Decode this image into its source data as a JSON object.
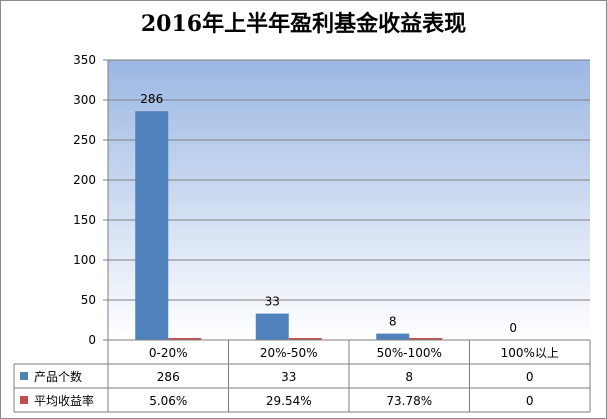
{
  "chart_data": {
    "type": "bar",
    "title": "2016年上半年盈利基金收益表现",
    "categories": [
      "0-20%",
      "20%-50%",
      "50%-100%",
      "100%以上"
    ],
    "ylim": [
      0,
      350
    ],
    "yticks": [
      0,
      50,
      100,
      150,
      200,
      250,
      300,
      350
    ],
    "grid": true,
    "legend": "table-left",
    "series": [
      {
        "name": "产品个数",
        "values": [
          286,
          33,
          8,
          0
        ],
        "table_values": [
          "286",
          "33",
          "8",
          "0"
        ],
        "data_labels": [
          "286",
          "33",
          "8",
          "0"
        ],
        "color": "#4f81bd"
      },
      {
        "name": "平均收益率",
        "values": [
          0.0506,
          0.2954,
          0.7378,
          0
        ],
        "table_values": [
          "5.06%",
          "29.54%",
          "73.78%",
          "0"
        ],
        "color": "#c0504d"
      }
    ]
  }
}
